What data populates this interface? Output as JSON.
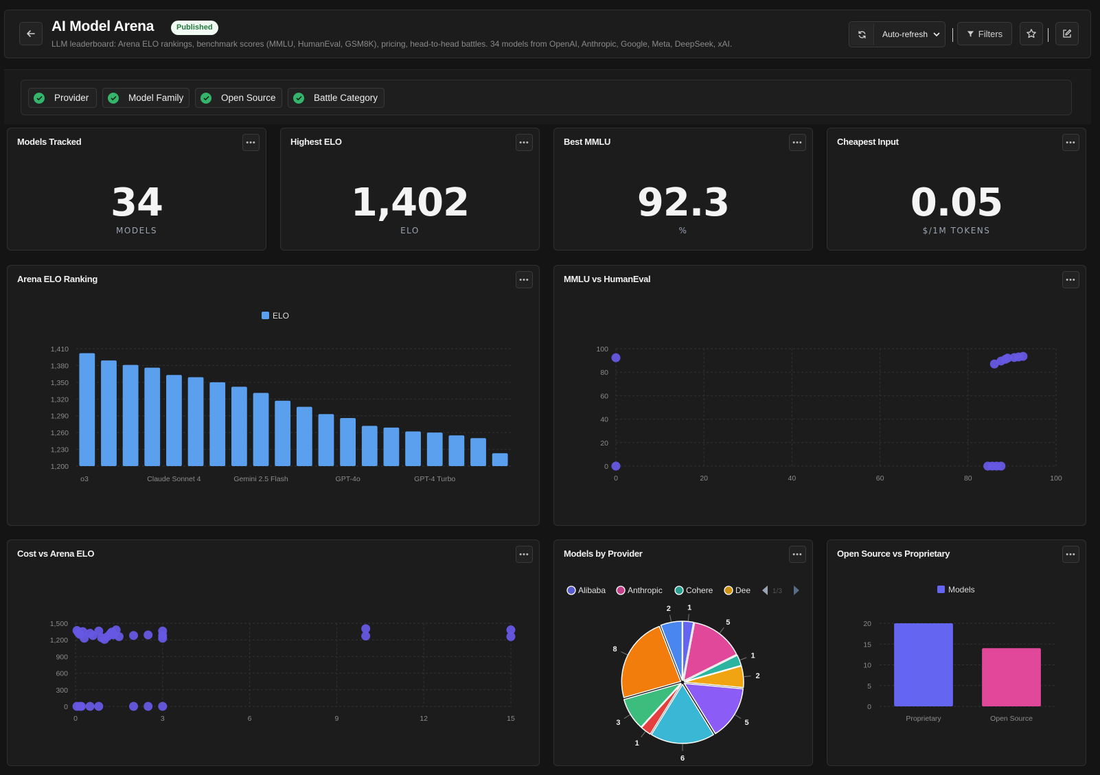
{
  "header": {
    "title": "AI Model Arena",
    "badge": "Published",
    "subtitle": "LLM leaderboard: Arena ELO rankings, benchmark scores (MMLU, HumanEval, GSM8K), pricing, head-to-head battles. 34 models from OpenAI, Anthropic, Google, Meta, DeepSeek, xAI.",
    "auto_refresh_label": "Auto-refresh",
    "filters_label": "Filters",
    "icons": [
      "arrow-left-icon",
      "refresh-icon",
      "chevron-down-icon",
      "funnel-icon",
      "star-icon",
      "edit-icon"
    ]
  },
  "filters": [
    {
      "label": "Provider"
    },
    {
      "label": "Model Family"
    },
    {
      "label": "Open Source"
    },
    {
      "label": "Battle Category"
    }
  ],
  "kpis": [
    {
      "title": "Models Tracked",
      "value": "34",
      "unit": "MODELS"
    },
    {
      "title": "Highest ELO",
      "value": "1,402",
      "unit": "ELO"
    },
    {
      "title": "Best MMLU",
      "value": "92.3",
      "unit": "%"
    },
    {
      "title": "Cheapest Input",
      "value": "0.05",
      "unit": "$/1M TOKENS"
    }
  ],
  "charts": {
    "elo": {
      "title": "Arena ELO Ranking"
    },
    "mmlu": {
      "title": "MMLU vs HumanEval"
    },
    "cost": {
      "title": "Cost vs Arena ELO"
    },
    "provider": {
      "title": "Models by Provider",
      "pager": "1/3"
    },
    "opensource": {
      "title": "Open Source vs Proprietary"
    }
  },
  "colors": {
    "accent_blue": "#5ba0ee",
    "scatter": "#6659e3",
    "green": "#33b56b",
    "pink": "#e2489a"
  },
  "chart_data": [
    {
      "id": "elo",
      "type": "bar",
      "legend": [
        "ELO"
      ],
      "tick_labels_shown": [
        "o3",
        "Claude Sonnet 4",
        "Gemini 2.5 Flash",
        "GPT-4o",
        "GPT-4 Turbo"
      ],
      "categories": [
        "o3",
        "",
        "",
        "",
        "Claude Sonnet 4",
        "",
        "",
        "",
        "Gemini 2.5 Flash",
        "",
        "",
        "",
        "GPT-4o",
        "",
        "",
        "",
        "GPT-4 Turbo",
        "",
        "",
        ""
      ],
      "series": [
        {
          "name": "ELO",
          "values": [
            1402,
            1389,
            1381,
            1376,
            1363,
            1359,
            1350,
            1342,
            1331,
            1317,
            1306,
            1293,
            1286,
            1272,
            1269,
            1262,
            1260,
            1255,
            1250,
            1223
          ]
        }
      ],
      "yticks": [
        1200,
        1230,
        1260,
        1290,
        1320,
        1350,
        1380,
        1410
      ],
      "ylim": [
        1200,
        1410
      ]
    },
    {
      "id": "mmlu",
      "type": "scatter",
      "xticks": [
        0,
        20,
        40,
        60,
        80,
        100
      ],
      "yticks": [
        0,
        20,
        40,
        60,
        80,
        100
      ],
      "xlim": [
        0,
        100
      ],
      "ylim": [
        0,
        100
      ],
      "points": [
        [
          0,
          92.3
        ],
        [
          0,
          0
        ],
        [
          86,
          87
        ],
        [
          87.5,
          89.5
        ],
        [
          88.5,
          91
        ],
        [
          89,
          92
        ],
        [
          90.5,
          92.5
        ],
        [
          91.5,
          93
        ],
        [
          92.5,
          93.5
        ],
        [
          84.5,
          0
        ],
        [
          85.5,
          0
        ],
        [
          86.5,
          0
        ],
        [
          87.5,
          0
        ]
      ]
    },
    {
      "id": "cost",
      "type": "scatter",
      "xticks": [
        0,
        3,
        6,
        9,
        12,
        15
      ],
      "yticks": [
        0,
        300,
        600,
        900,
        1200,
        1500
      ],
      "xlim": [
        0,
        15
      ],
      "ylim": [
        0,
        1500
      ],
      "points": [
        [
          0.05,
          1370
        ],
        [
          0.1,
          1330
        ],
        [
          0.15,
          1300
        ],
        [
          0.25,
          1350
        ],
        [
          0.3,
          1230
        ],
        [
          0.5,
          1320
        ],
        [
          0.6,
          1280
        ],
        [
          0.8,
          1360
        ],
        [
          0.9,
          1240
        ],
        [
          1.0,
          1210
        ],
        [
          1.1,
          1260
        ],
        [
          1.2,
          1310
        ],
        [
          1.3,
          1290
        ],
        [
          1.25,
          1340
        ],
        [
          1.4,
          1380
        ],
        [
          1.5,
          1260
        ],
        [
          2.0,
          1280
        ],
        [
          2.5,
          1290
        ],
        [
          3.0,
          1360
        ],
        [
          3.0,
          1280
        ],
        [
          3.0,
          1230
        ],
        [
          10,
          1402
        ],
        [
          10,
          1270
        ],
        [
          15,
          1380
        ],
        [
          15,
          1260
        ],
        [
          0.05,
          0
        ],
        [
          0.15,
          0
        ],
        [
          0.2,
          0
        ],
        [
          0.5,
          0
        ],
        [
          0.8,
          0
        ],
        [
          2.0,
          0
        ],
        [
          2.5,
          0
        ],
        [
          3.0,
          0
        ]
      ]
    },
    {
      "id": "provider",
      "type": "pie",
      "legend_visible": [
        "Alibaba",
        "Anthropic",
        "Cohere",
        "Dee"
      ],
      "slices": [
        {
          "name": "Alibaba",
          "value": 1,
          "color": "#6466f1"
        },
        {
          "name": "Anthropic",
          "value": 5,
          "color": "#e2489a"
        },
        {
          "name": "Cohere",
          "value": 1,
          "color": "#2bb5a0"
        },
        {
          "name": "",
          "value": 2,
          "color": "#f0a411"
        },
        {
          "name": "",
          "value": 5,
          "color": "#8b5cf6"
        },
        {
          "name": "",
          "value": 6,
          "color": "#3bb7d6"
        },
        {
          "name": "",
          "value": 1,
          "color": "#e53e3e"
        },
        {
          "name": "",
          "value": 3,
          "color": "#3dbd7d"
        },
        {
          "name": "",
          "value": 8,
          "color": "#f27c0c"
        },
        {
          "name": "",
          "value": 2,
          "color": "#4a86f0"
        }
      ]
    },
    {
      "id": "opensource",
      "type": "bar",
      "legend": [
        "Models"
      ],
      "categories": [
        "Proprietary",
        "Open Source"
      ],
      "series": [
        {
          "name": "Models",
          "values": [
            20,
            14
          ]
        }
      ],
      "bar_colors": [
        "#6466f1",
        "#e2489a"
      ],
      "yticks": [
        0,
        5,
        10,
        15,
        20
      ],
      "ylim": [
        0,
        20
      ]
    }
  ]
}
